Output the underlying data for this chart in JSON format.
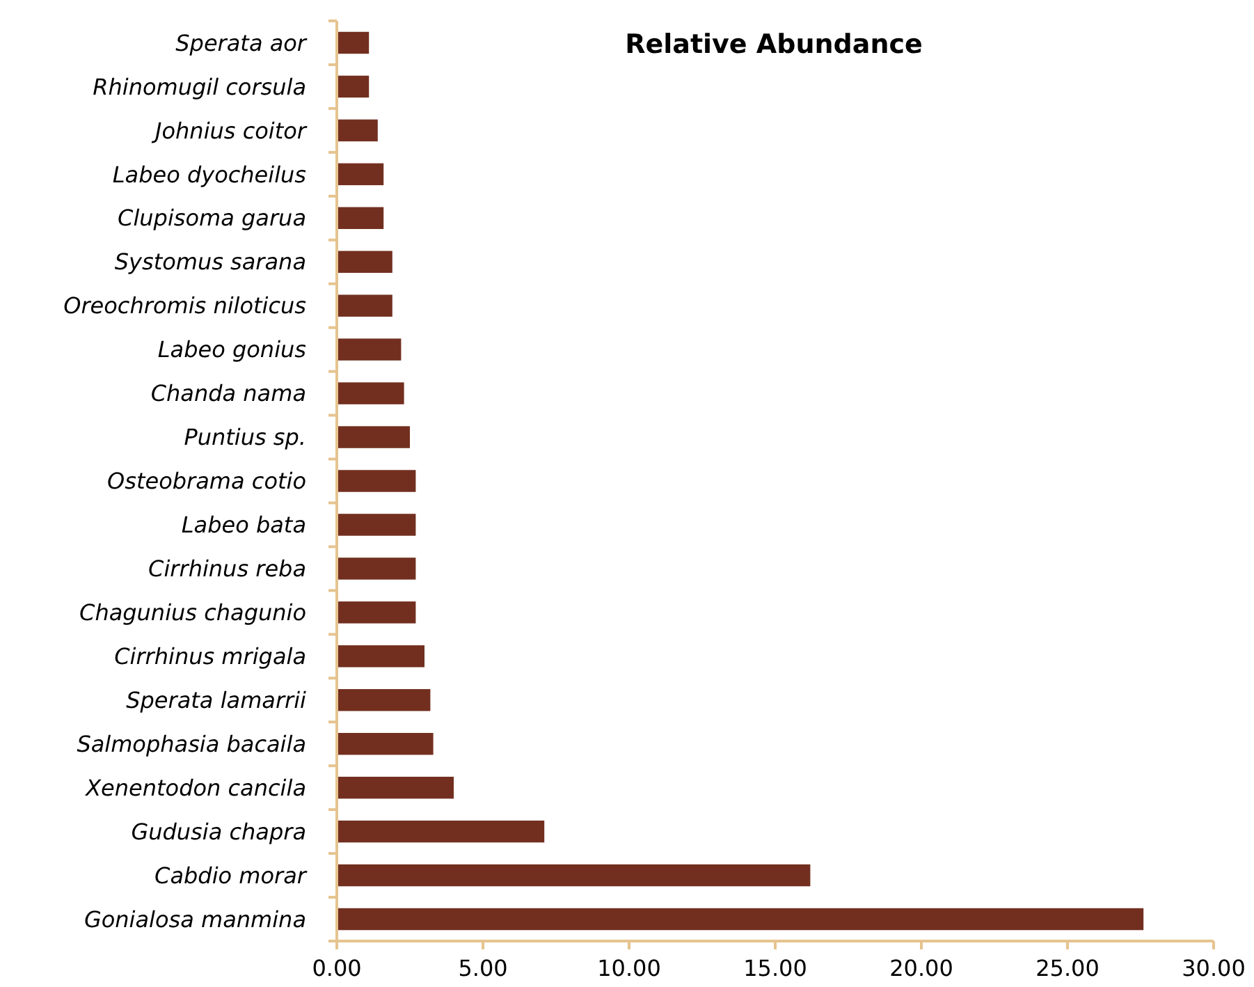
{
  "chart_data": {
    "type": "bar",
    "orientation": "horizontal",
    "title": "Relative Abundance",
    "categories": [
      "Sperata aor",
      "Rhinomugil corsula",
      "Johnius coitor",
      "Labeo dyocheilus",
      "Clupisoma garua",
      "Systomus sarana",
      "Oreochromis niloticus",
      "Labeo gonius",
      "Chanda nama",
      "Puntius sp.",
      "Osteobrama cotio",
      "Labeo bata",
      "Cirrhinus reba",
      "Chagunius chagunio",
      "Cirrhinus mrigala",
      "Sperata lamarrii",
      "Salmophasia bacaila",
      "Xenentodon cancila",
      "Gudusia chapra",
      "Cabdio morar",
      "Gonialosa manmina"
    ],
    "values": [
      1.1,
      1.1,
      1.4,
      1.6,
      1.6,
      1.9,
      1.9,
      2.2,
      2.3,
      2.5,
      2.7,
      2.7,
      2.7,
      2.7,
      3.0,
      3.2,
      3.3,
      4.0,
      7.1,
      16.2,
      27.6
    ],
    "color": "#722f1f",
    "xlim": [
      0,
      30
    ],
    "xticks": [
      {
        "value": 0,
        "label": "0.00"
      },
      {
        "value": 5,
        "label": "5.00"
      },
      {
        "value": 10,
        "label": "10.00"
      },
      {
        "value": 15,
        "label": "15.00"
      },
      {
        "value": 20,
        "label": "20.00"
      },
      {
        "value": 25,
        "label": "25.00"
      },
      {
        "value": 30,
        "label": "30.00"
      }
    ],
    "grid": false
  }
}
